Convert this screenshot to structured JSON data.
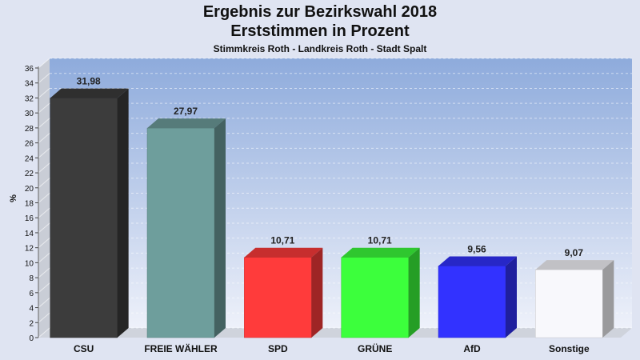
{
  "header": {
    "title": "Ergebnis zur Bezirkswahl 2018",
    "subtitle": "Erststimmen in Prozent",
    "region": "Stimmkreis Roth - Landkreis Roth - Stadt Spalt"
  },
  "chart_data": {
    "type": "bar",
    "title": "Ergebnis zur Bezirkswahl 2018",
    "subtitle": "Erststimmen in Prozent",
    "xlabel": "",
    "ylabel": "%",
    "ylim": [
      0,
      36
    ],
    "ytick_step": 2,
    "grid": true,
    "categories": [
      "CSU",
      "FREIE WÄHLER",
      "SPD",
      "GRÜNE",
      "AfD",
      "Sonstige"
    ],
    "values": [
      31.98,
      27.97,
      10.71,
      10.71,
      9.56,
      9.07
    ],
    "value_labels": [
      "31,98",
      "27,97",
      "10,71",
      "10,71",
      "9,56",
      "9,07"
    ],
    "colors": [
      "#3c3c3c",
      "#6e9e9c",
      "#ff3b3b",
      "#3cff3c",
      "#3232ff",
      "#f8f8fc"
    ]
  }
}
